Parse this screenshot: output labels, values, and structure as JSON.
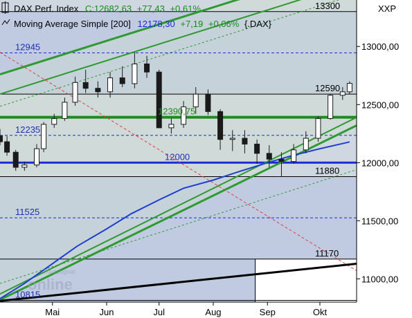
{
  "header": {
    "line1_name": "DAX Perf. Index",
    "line1_close": "C:12682,63",
    "line1_change": "+77,43",
    "line1_change_pct": "+0,61%",
    "line2_name": "Moving Average Simple [200]",
    "line2_value": "12178,30",
    "line2_change": "+7,19",
    "line2_change_pct": "+0,06%",
    "line2_symbol": "{.DAX}",
    "symbol_right": "XXP"
  },
  "watermark": {
    "brand": "Tradesignal",
    "product": "online"
  },
  "colors": {
    "background": "#ffffff",
    "band_light": "#cfd8e0",
    "band_blue": "#c0cbe2",
    "band_green": "#cde0cb",
    "channel_green": "#2f9a2f",
    "level_green": "#1f8a1f",
    "level_blue": "#1a2ad8",
    "ma_blue": "#1e3ed0",
    "trend_red": "#e04040",
    "trend_black": "#000000",
    "candle_dark": "#1a1a1a",
    "candle_light": "#ffffff",
    "level_label_blue": "#2030b0",
    "header_green": "#1a8a1a",
    "header_name": "#000000"
  },
  "chart_data": {
    "type": "candlestick",
    "title": "DAX Perf. Index",
    "ylim": [
      10800,
      13400
    ],
    "y_ticks": [
      11000,
      11500,
      12000,
      12500,
      13000
    ],
    "y_tick_labels": [
      "11000,00",
      "11500,00",
      "12000,00",
      "12500,00",
      "13000,00"
    ],
    "x_range": [
      "2019-04-01",
      "2019-10-22"
    ],
    "x_ticks": [
      "2019-05-01",
      "2019-06-01",
      "2019-07-01",
      "2019-08-01",
      "2019-09-01",
      "2019-10-01"
    ],
    "x_tick_labels": [
      "Mai",
      "Jun",
      "Jul",
      "Aug",
      "Sep",
      "Okt"
    ],
    "levels": [
      {
        "value": 13300,
        "label": "13300",
        "style": "solid-black"
      },
      {
        "value": 12945,
        "label": "12945",
        "style": "dashed-blue"
      },
      {
        "value": 12590,
        "label": "12590",
        "style": "solid-black"
      },
      {
        "value": 12390.75,
        "label": "12390,75",
        "style": "thick-green"
      },
      {
        "value": 12235,
        "label": "12235",
        "style": "dashed-blue"
      },
      {
        "value": 12000,
        "label": "12000",
        "style": "thick-blue"
      },
      {
        "value": 11880,
        "label": "11880",
        "style": "solid-black"
      },
      {
        "value": 11525,
        "label": "11525",
        "style": "dashed-blue"
      },
      {
        "value": 11170,
        "label": "11170",
        "style": "solid-black"
      },
      {
        "value": 10815,
        "label": "10815",
        "style": "solid-black"
      }
    ],
    "trend_channel": {
      "upper_outer": [
        [
          "2019-04-01",
          12760
        ],
        [
          "2019-10-22",
          13725
        ]
      ],
      "upper_inner": [
        [
          "2019-04-01",
          12590
        ],
        [
          "2019-10-22",
          13555
        ]
      ],
      "upper_dashed": [
        [
          "2019-04-01",
          12485
        ],
        [
          "2019-10-22",
          13450
        ]
      ],
      "lower_dashed": [
        [
          "2019-04-01",
          10960
        ],
        [
          "2019-10-22",
          11940
        ]
      ],
      "lower_outer": [
        [
          "2019-04-01",
          10870
        ],
        [
          "2019-10-22",
          12390
        ]
      ],
      "lower_inner": [
        [
          "2019-04-01",
          10820
        ],
        [
          "2019-10-22",
          12320
        ]
      ]
    },
    "downtrend_red": [
      [
        "2019-04-01",
        12950
      ],
      [
        "2019-10-22",
        11070
      ]
    ],
    "long_trend_black": [
      [
        "2019-04-01",
        10810
      ],
      [
        "2019-10-22",
        11130
      ]
    ],
    "series": [
      {
        "name": "DAX Perf. Index",
        "kind": "ohlc",
        "dates": [
          "2019-04-01",
          "2019-04-05",
          "2019-04-10",
          "2019-04-15",
          "2019-04-22",
          "2019-04-26",
          "2019-05-02",
          "2019-05-08",
          "2019-05-14",
          "2019-05-20",
          "2019-05-27",
          "2019-06-03",
          "2019-06-10",
          "2019-06-17",
          "2019-06-24",
          "2019-07-01",
          "2019-07-08",
          "2019-07-15",
          "2019-07-22",
          "2019-07-29",
          "2019-08-05",
          "2019-08-12",
          "2019-08-19",
          "2019-08-26",
          "2019-09-02",
          "2019-09-09",
          "2019-09-16",
          "2019-09-23",
          "2019-09-30",
          "2019-10-07",
          "2019-10-14",
          "2019-10-18"
        ],
        "open": [
          12230,
          12180,
          12090,
          11960,
          11980,
          12120,
          12330,
          12380,
          12520,
          12690,
          12640,
          12610,
          12730,
          12680,
          12850,
          12780,
          12300,
          12330,
          12480,
          12590,
          12440,
          12200,
          12210,
          12160,
          12080,
          12030,
          12010,
          12110,
          12210,
          12380,
          12580,
          12610
        ],
        "high": [
          12290,
          12230,
          12110,
          12010,
          12160,
          12350,
          12420,
          12560,
          12740,
          12800,
          12700,
          12780,
          12830,
          12950,
          12920,
          12800,
          12380,
          12530,
          12650,
          12630,
          12460,
          12280,
          12280,
          12200,
          12150,
          12090,
          12160,
          12270,
          12400,
          12590,
          12650,
          12700
        ],
        "low": [
          12150,
          12060,
          11930,
          11930,
          11960,
          12090,
          12300,
          12360,
          12490,
          12600,
          12560,
          12560,
          12650,
          12640,
          12730,
          12300,
          12250,
          12300,
          12420,
          12410,
          12110,
          12100,
          12080,
          11990,
          11960,
          11880,
          11990,
          12080,
          12180,
          12370,
          12540,
          12590
        ],
        "close": [
          12180,
          12090,
          11960,
          11980,
          12120,
          12330,
          12380,
          12520,
          12690,
          12640,
          12610,
          12730,
          12680,
          12850,
          12780,
          12300,
          12330,
          12480,
          12590,
          12440,
          12200,
          12210,
          12160,
          12080,
          12030,
          12010,
          12110,
          12210,
          12380,
          12580,
          12610,
          12682.63
        ]
      },
      {
        "name": "Moving Average Simple [200]",
        "kind": "line",
        "dates": [
          "2019-04-01",
          "2019-04-15",
          "2019-05-01",
          "2019-05-15",
          "2019-06-01",
          "2019-06-15",
          "2019-07-01",
          "2019-07-15",
          "2019-08-01",
          "2019-08-15",
          "2019-09-01",
          "2019-09-15",
          "2019-10-01",
          "2019-10-18"
        ],
        "values": [
          10830,
          10960,
          11130,
          11280,
          11430,
          11560,
          11680,
          11780,
          11850,
          11920,
          12000,
          12060,
          12120,
          12178.3
        ]
      }
    ]
  }
}
